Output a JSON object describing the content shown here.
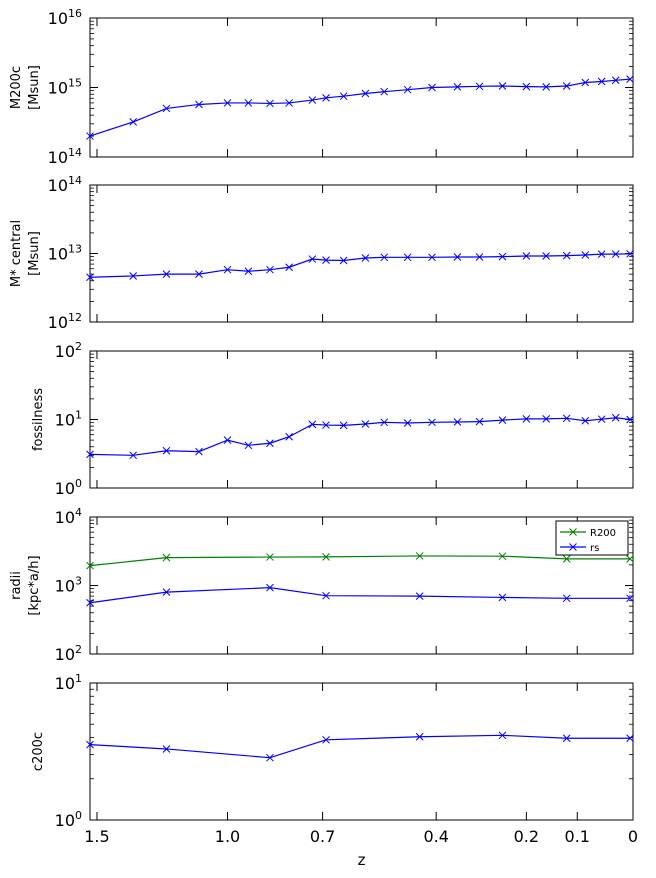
{
  "chart_data": [
    {
      "type": "line",
      "ylabel": [
        "M200c",
        "[Msun]"
      ],
      "yscale": "log",
      "ylim": [
        100000000000000.0,
        1e+16
      ],
      "yticks": [
        {
          "exp": "14"
        },
        {
          "exp": "15"
        },
        {
          "exp": "16"
        }
      ],
      "series": [
        {
          "color": "#0000ff",
          "marker": "x",
          "x": [
            1.53,
            1.35,
            1.22,
            1.1,
            1.0,
            0.93,
            0.86,
            0.8,
            0.73,
            0.69,
            0.64,
            0.58,
            0.53,
            0.47,
            0.41,
            0.35,
            0.3,
            0.25,
            0.2,
            0.16,
            0.12,
            0.085,
            0.055,
            0.03,
            0.005
          ],
          "y": [
            200000000000000.0,
            320000000000000.0,
            500000000000000.0,
            570000000000000.0,
            600000000000000.0,
            600000000000000.0,
            590000000000000.0,
            600000000000000.0,
            660000000000000.0,
            710000000000000.0,
            750000000000000.0,
            820000000000000.0,
            870000000000000.0,
            930000000000000.0,
            1000000000000000.0,
            1020000000000000.0,
            1040000000000000.0,
            1050000000000000.0,
            1030000000000000.0,
            1020000000000000.0,
            1050000000000000.0,
            1180000000000000.0,
            1220000000000000.0,
            1270000000000000.0,
            1320000000000000.0
          ]
        }
      ]
    },
    {
      "type": "line",
      "ylabel": [
        "M* central",
        "[Msun]"
      ],
      "yscale": "log",
      "ylim": [
        1000000000000.0,
        100000000000000.0
      ],
      "yticks": [
        {
          "exp": "12"
        },
        {
          "exp": "13"
        },
        {
          "exp": "14"
        }
      ],
      "series": [
        {
          "color": "#0000ff",
          "marker": "x",
          "x": [
            1.53,
            1.35,
            1.22,
            1.1,
            1.0,
            0.93,
            0.86,
            0.8,
            0.73,
            0.69,
            0.64,
            0.58,
            0.53,
            0.47,
            0.41,
            0.35,
            0.3,
            0.25,
            0.2,
            0.16,
            0.12,
            0.085,
            0.055,
            0.03,
            0.005
          ],
          "y": [
            4500000000000.0,
            4700000000000.0,
            5000000000000.0,
            5000000000000.0,
            5800000000000.0,
            5500000000000.0,
            5800000000000.0,
            6300000000000.0,
            8300000000000.0,
            8000000000000.0,
            7900000000000.0,
            8600000000000.0,
            8800000000000.0,
            8800000000000.0,
            8800000000000.0,
            8900000000000.0,
            8900000000000.0,
            9000000000000.0,
            9200000000000.0,
            9200000000000.0,
            9300000000000.0,
            9500000000000.0,
            9800000000000.0,
            9800000000000.0,
            9900000000000.0
          ]
        }
      ]
    },
    {
      "type": "line",
      "ylabel": [
        "fossilness"
      ],
      "yscale": "log",
      "ylim": [
        1,
        100
      ],
      "yticks": [
        {
          "exp": "0"
        },
        {
          "exp": "1"
        },
        {
          "exp": "2"
        }
      ],
      "series": [
        {
          "color": "#0000ff",
          "marker": "x",
          "x": [
            1.53,
            1.35,
            1.22,
            1.1,
            1.0,
            0.93,
            0.86,
            0.8,
            0.73,
            0.69,
            0.64,
            0.58,
            0.53,
            0.47,
            0.41,
            0.35,
            0.3,
            0.25,
            0.2,
            0.16,
            0.12,
            0.085,
            0.055,
            0.03,
            0.005
          ],
          "y": [
            3.1,
            3.0,
            3.5,
            3.4,
            5.0,
            4.2,
            4.5,
            5.6,
            8.5,
            8.3,
            8.2,
            8.6,
            9.1,
            8.9,
            9.1,
            9.2,
            9.3,
            9.8,
            10.2,
            10.2,
            10.4,
            9.6,
            10.1,
            10.6,
            10.0
          ]
        }
      ]
    },
    {
      "type": "line",
      "ylabel": [
        "radii",
        "[kpc*a/h]"
      ],
      "yscale": "log",
      "ylim": [
        100,
        10000
      ],
      "yticks": [
        {
          "exp": "2"
        },
        {
          "exp": "3"
        },
        {
          "exp": "4"
        }
      ],
      "legend": "top-right",
      "series": [
        {
          "name": "R200",
          "color": "#008000",
          "marker": "x",
          "x": [
            1.53,
            1.22,
            0.86,
            0.69,
            0.44,
            0.25,
            0.12,
            0.005
          ],
          "y": [
            1950,
            2550,
            2600,
            2620,
            2700,
            2680,
            2450,
            2450
          ]
        },
        {
          "name": "rs",
          "color": "#0000ff",
          "marker": "x",
          "x": [
            1.53,
            1.22,
            0.86,
            0.69,
            0.44,
            0.25,
            0.12,
            0.005
          ],
          "y": [
            560,
            800,
            930,
            710,
            700,
            670,
            650,
            650
          ]
        }
      ]
    },
    {
      "type": "line",
      "ylabel": [
        "c200c"
      ],
      "yscale": "log",
      "ylim": [
        1,
        10
      ],
      "yticks": [
        {
          "exp": "0"
        },
        {
          "exp": "1"
        }
      ],
      "xlabel": "z",
      "xticks": [
        "1.5",
        "1.0",
        "0.7",
        "0.4",
        "0.2",
        "0.1",
        "0"
      ],
      "series": [
        {
          "color": "#0000ff",
          "marker": "x",
          "x": [
            1.53,
            1.22,
            0.86,
            0.69,
            0.44,
            0.25,
            0.12,
            0.005
          ],
          "y": [
            3.55,
            3.3,
            2.85,
            3.85,
            4.05,
            4.15,
            3.95,
            3.95
          ]
        }
      ]
    }
  ]
}
